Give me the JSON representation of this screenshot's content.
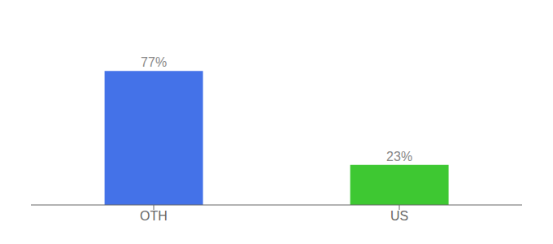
{
  "chart_data": {
    "type": "bar",
    "categories": [
      "OTH",
      "US"
    ],
    "values": [
      77,
      23
    ],
    "value_labels": [
      "77%",
      "23%"
    ],
    "colors": [
      "#4472e8",
      "#3ec832"
    ],
    "ylim": [
      0,
      100
    ],
    "grid": false,
    "data_labels": true,
    "tick_labels": "x"
  }
}
